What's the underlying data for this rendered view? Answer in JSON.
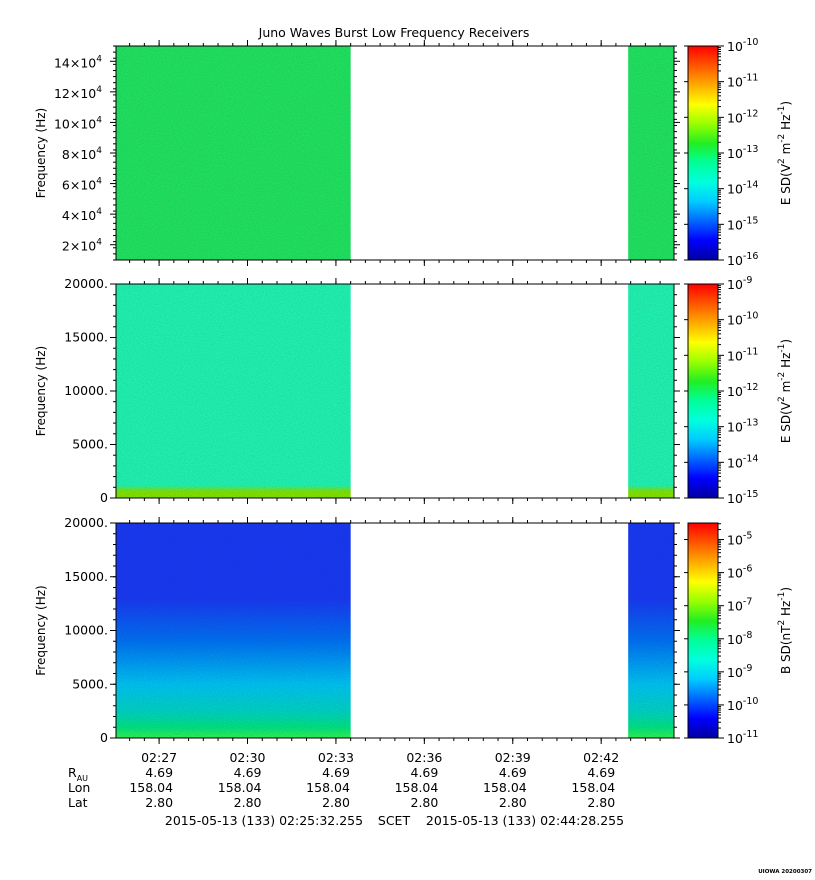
{
  "title": "Juno Waves Burst Low Frequency Receivers",
  "credit": "UIOWA 20200307",
  "colors": {
    "colormap": [
      "#0000a0",
      "#0000ff",
      "#0066ff",
      "#00ccff",
      "#00ffdd",
      "#00ff99",
      "#22ee22",
      "#99ff00",
      "#ffff00",
      "#ffaa00",
      "#ff5500",
      "#ff0000"
    ],
    "panel1_fill": "#22ee66",
    "panel2_fill": "#22ffbb",
    "panel2_band": "#88ee00",
    "panel3_top": "#1a3cff",
    "panel3_mid": "#00ccff",
    "panel3_bottom": "#33ff55"
  },
  "time_axis": {
    "start": "02:25:32.255",
    "end": "02:44:28.255",
    "tick_labels": [
      "02:27",
      "02:30",
      "02:33",
      "02:36",
      "02:39",
      "02:42"
    ],
    "data_gaps": [
      [
        "02:33:30",
        "02:42:55"
      ]
    ]
  },
  "ephemeris": {
    "row_labels": {
      "rau_main": "R",
      "rau_sub": "AU",
      "lon": "Lon",
      "lat": "Lat"
    },
    "rau": [
      "4.69",
      "4.69",
      "4.69",
      "4.69",
      "4.69",
      "4.69"
    ],
    "lon": [
      "158.04",
      "158.04",
      "158.04",
      "158.04",
      "158.04",
      "158.04"
    ],
    "lat": [
      "2.80",
      "2.80",
      "2.80",
      "2.80",
      "2.80",
      "2.80"
    ]
  },
  "footer": {
    "start": "2015-05-13 (133) 02:25:32.255",
    "scet": "SCET",
    "end": "2015-05-13 (133) 02:44:28.255"
  },
  "chart_data": [
    {
      "type": "heatmap",
      "ylabel": "Frequency (Hz)",
      "ylim": [
        10000,
        150000
      ],
      "ytick_labels": [
        {
          "base": "2×10",
          "exp": "4"
        },
        {
          "base": "4×10",
          "exp": "4"
        },
        {
          "base": "6×10",
          "exp": "4"
        },
        {
          "base": "8×10",
          "exp": "4"
        },
        {
          "base": "10×10",
          "exp": "4"
        },
        {
          "base": "12×10",
          "exp": "4"
        },
        {
          "base": "14×10",
          "exp": "4"
        }
      ],
      "yticks": [
        20000,
        40000,
        60000,
        80000,
        100000,
        120000,
        140000
      ],
      "colorbar": {
        "label_parts": [
          {
            "t": "E SD(V"
          },
          {
            "sup": "2"
          },
          {
            "t": " m"
          },
          {
            "sup": "-2"
          },
          {
            "t": " Hz"
          },
          {
            "sup": "-1"
          },
          {
            "t": ")"
          }
        ],
        "range_exp": [
          -16,
          -10
        ],
        "tick_exp": [
          "-16",
          "-15",
          "-14",
          "-13",
          "-12",
          "-11",
          "-10"
        ]
      }
    },
    {
      "type": "heatmap",
      "ylabel": "Frequency (Hz)",
      "ylim": [
        0,
        20000
      ],
      "ytick_labels": [
        "0",
        "5000.",
        "10000.",
        "15000.",
        "20000."
      ],
      "yticks": [
        0,
        5000,
        10000,
        15000,
        20000
      ],
      "colorbar": {
        "label_parts": [
          {
            "t": "E SD(V"
          },
          {
            "sup": "2"
          },
          {
            "t": " m"
          },
          {
            "sup": "-2"
          },
          {
            "t": " Hz"
          },
          {
            "sup": "-1"
          },
          {
            "t": ")"
          }
        ],
        "range_exp": [
          -15,
          -9
        ],
        "tick_exp": [
          "-15",
          "-14",
          "-13",
          "-12",
          "-11",
          "-10",
          "-9"
        ]
      }
    },
    {
      "type": "heatmap",
      "ylabel": "Frequency (Hz)",
      "ylim": [
        0,
        20000
      ],
      "ytick_labels": [
        "0",
        "5000.",
        "10000.",
        "15000.",
        "20000."
      ],
      "yticks": [
        0,
        5000,
        10000,
        15000,
        20000
      ],
      "colorbar": {
        "label_parts": [
          {
            "t": "B SD(nT"
          },
          {
            "sup": "2"
          },
          {
            "t": " Hz"
          },
          {
            "sup": "-1"
          },
          {
            "t": ")"
          }
        ],
        "range_exp": [
          -11,
          -4.5
        ],
        "tick_exp": [
          "-11",
          "-10",
          "-9",
          "-8",
          "-7",
          "-6",
          "-5"
        ]
      }
    }
  ]
}
